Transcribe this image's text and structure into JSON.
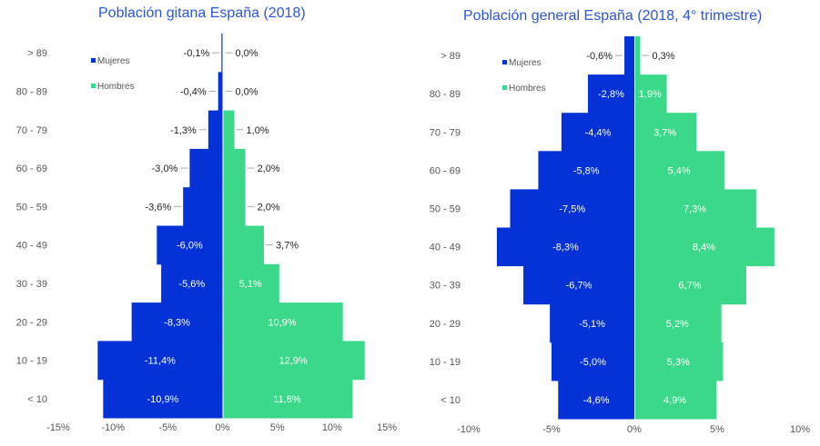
{
  "chart_data": [
    {
      "type": "bar",
      "orientation": "horizontal-population-pyramid",
      "title": "Población gitana España (2018)",
      "categories": [
        "> 89",
        "80 - 89",
        "70 - 79",
        "60 - 69",
        "50 - 59",
        "40 - 49",
        "30 - 39",
        "20 - 29",
        "10 - 19",
        "< 10"
      ],
      "series": [
        {
          "name": "Mujeres",
          "color": "#0432d6",
          "values": [
            -0.1,
            -0.4,
            -1.3,
            -3.0,
            -3.6,
            -6.0,
            -5.6,
            -8.3,
            -11.4,
            -10.9
          ],
          "labels": [
            "-0,1%",
            "-0,4%",
            "-1,3%",
            "-3,0%",
            "-3,6%",
            "-6,0%",
            "-5,6%",
            "-8,3%",
            "-11,4%",
            "-10,9%"
          ]
        },
        {
          "name": "Hombres",
          "color": "#3bd88a",
          "values": [
            0.0,
            0.0,
            1.0,
            2.0,
            2.0,
            3.7,
            5.1,
            10.9,
            12.9,
            11.8
          ],
          "labels": [
            "0,0%",
            "0,0%",
            "1,0%",
            "2,0%",
            "2,0%",
            "3,7%",
            "5,1%",
            "10,9%",
            "12,9%",
            "11,8%"
          ]
        }
      ],
      "xlim": [
        -15,
        15
      ],
      "xticks": [
        "-15%",
        "-10%",
        "-5%",
        "0%",
        "5%",
        "10%",
        "15%"
      ],
      "legend": "top-left",
      "grid": false
    },
    {
      "type": "bar",
      "orientation": "horizontal-population-pyramid",
      "title": "Población general España (2018, 4° trimestre)",
      "categories": [
        "> 89",
        "80 - 89",
        "70 - 79",
        "60 - 69",
        "50 - 59",
        "40 - 49",
        "30 - 39",
        "20 - 29",
        "10 - 19",
        "< 10"
      ],
      "series": [
        {
          "name": "Mujeres",
          "color": "#0432d6",
          "values": [
            -0.6,
            -2.8,
            -4.4,
            -5.8,
            -7.5,
            -8.3,
            -6.7,
            -5.1,
            -5.0,
            -4.6
          ],
          "labels": [
            "-0,6%",
            "-2,8%",
            "-4,4%",
            "-5,8%",
            "-7,5%",
            "-8,3%",
            "-6,7%",
            "-5,1%",
            "-5,0%",
            "-4,6%"
          ]
        },
        {
          "name": "Hombres",
          "color": "#3bd88a",
          "values": [
            0.3,
            1.9,
            3.7,
            5.4,
            7.3,
            8.4,
            6.7,
            5.2,
            5.3,
            4.9
          ],
          "labels": [
            "0,3%",
            "1,9%",
            "3,7%",
            "5,4%",
            "7,3%",
            "8,4%",
            "6,7%",
            "5,2%",
            "5,3%",
            "4,9%"
          ]
        }
      ],
      "xlim": [
        -10,
        10
      ],
      "xticks": [
        "-10%",
        "-5%",
        "0%",
        "5%",
        "10%"
      ],
      "legend": "top-left",
      "grid": false
    }
  ]
}
